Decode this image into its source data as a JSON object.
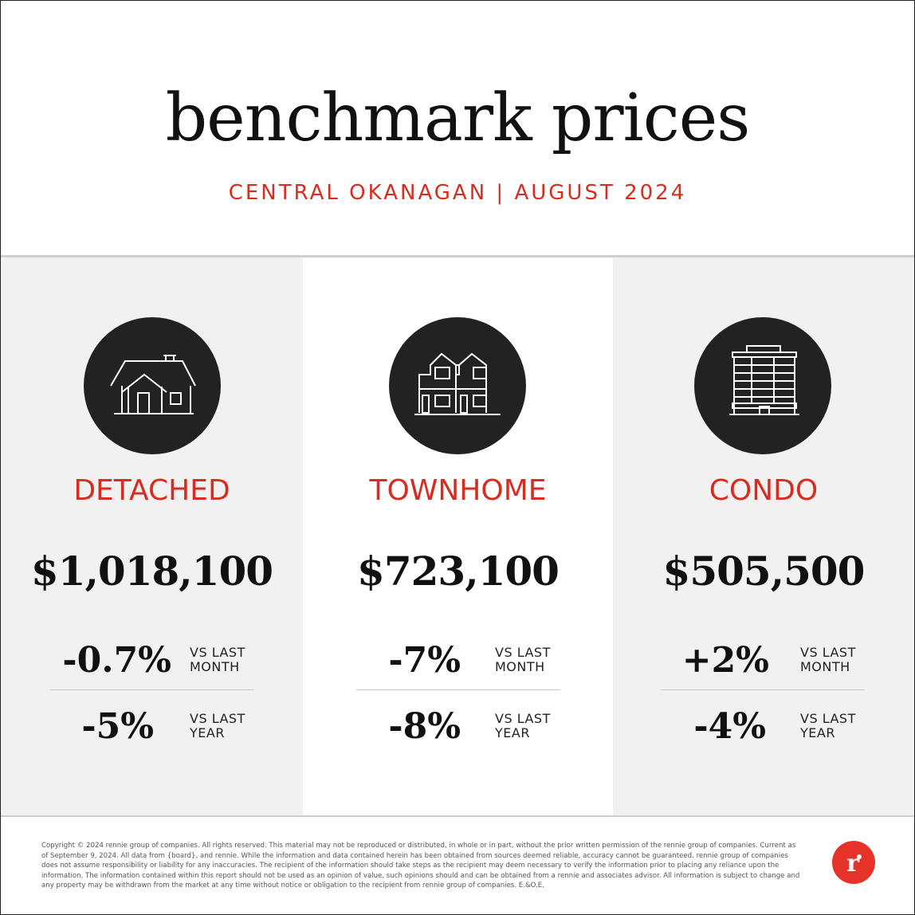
{
  "header": {
    "title": "benchmark prices",
    "subtitle": "CENTRAL OKANAGAN | AUGUST 2024"
  },
  "columns": [
    {
      "type": "DETACHED",
      "icon": "house-icon",
      "price": "$1,018,100",
      "month_change": "-0.7%",
      "month_label_line1": "VS LAST",
      "month_label_line2": "MONTH",
      "year_change": "-5%",
      "year_label_line1": "VS LAST",
      "year_label_line2": "YEAR"
    },
    {
      "type": "TOWNHOME",
      "icon": "townhouse-icon",
      "price": "$723,100",
      "month_change": "-7%",
      "month_label_line1": "VS LAST",
      "month_label_line2": "MONTH",
      "year_change": "-8%",
      "year_label_line1": "VS LAST",
      "year_label_line2": "YEAR"
    },
    {
      "type": "CONDO",
      "icon": "apartment-building-icon",
      "price": "$505,500",
      "month_change": "+2%",
      "month_label_line1": "VS LAST",
      "month_label_line2": "MONTH",
      "year_change": "-4%",
      "year_label_line1": "VS LAST",
      "year_label_line2": "YEAR"
    }
  ],
  "footer": {
    "disclaimer": "Copyright © 2024 rennie group of companies. All rights reserved. This material may not be reproduced or distributed, in whole or in part, without the prior written permission of the rennie group of companies. Current as of September 9, 2024. All data from {board}, and rennie. While the information and data contained herein has been obtained from sources deemed reliable, accuracy cannot be guaranteed. rennie group of companies does not assume responsibility or liability for any inaccuracies. The recipient of the information should take steps as the recipient may deem necessary to verify the information prior to placing any reliance upon the information. The information contained within this report should not be used as an opinion of value, such opinions should and can be obtained from a rennie and associates advisor. All information is subject to change and any property may be withdrawn from the market at any time without notice or obligation to the recipient from rennie group of companies. E.&O.E.",
    "logo_letter": "r",
    "logo_color": "#e6332a"
  },
  "colors": {
    "accent": "#d62d20",
    "icon_circle": "#222222",
    "panel_bg": "#f1f1f1"
  }
}
